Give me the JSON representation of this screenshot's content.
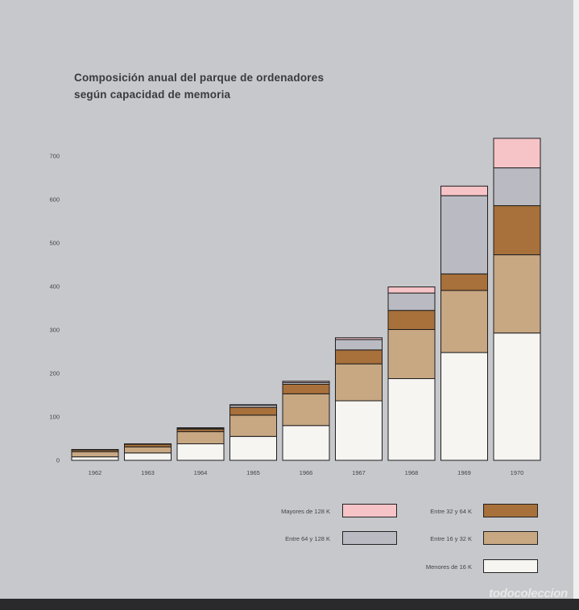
{
  "chart_data": {
    "type": "bar",
    "stacked": true,
    "title_lines": [
      "Composición anual del parque de ordenadores",
      "según capacidad de memoria"
    ],
    "categories": [
      "1962",
      "1963",
      "1964",
      "1965",
      "1966",
      "1967",
      "1968",
      "1969",
      "1970"
    ],
    "y_ticks": [
      "0",
      "100",
      "200",
      "300",
      "400",
      "500",
      "600",
      "700"
    ],
    "ylim": [
      0,
      750
    ],
    "grid": false,
    "legend_position": "bottom-right",
    "series": [
      {
        "name": "Menores de 16 K",
        "color": "#f7f5f2",
        "values": [
          8,
          17,
          38,
          55,
          80,
          137,
          188,
          248,
          293
        ]
      },
      {
        "name": "Entre 16 y 32 K",
        "color": "#c8a783",
        "values": [
          12,
          14,
          28,
          49,
          73,
          85,
          113,
          143,
          180
        ]
      },
      {
        "name": "Entre 32 y 64 K",
        "color": "#a8703a",
        "values": [
          4,
          6,
          6,
          18,
          22,
          32,
          44,
          38,
          113
        ]
      },
      {
        "name": "Entre 64 y 128 K",
        "color": "#babbc2",
        "values": [
          1,
          1,
          2,
          5,
          4,
          24,
          40,
          180,
          87
        ]
      },
      {
        "name": "Mayores de 128 K",
        "color": "#f6c3c7",
        "values": [
          0,
          0,
          1,
          1,
          3,
          4,
          14,
          22,
          68
        ]
      }
    ]
  },
  "legend_order": [
    {
      "series_index": 4,
      "column": "left"
    },
    {
      "series_index": 2,
      "column": "right"
    },
    {
      "series_index": 3,
      "column": "left"
    },
    {
      "series_index": 1,
      "column": "right"
    },
    {
      "series_index": 0,
      "column": "right"
    }
  ],
  "watermark": "todocoleccion"
}
